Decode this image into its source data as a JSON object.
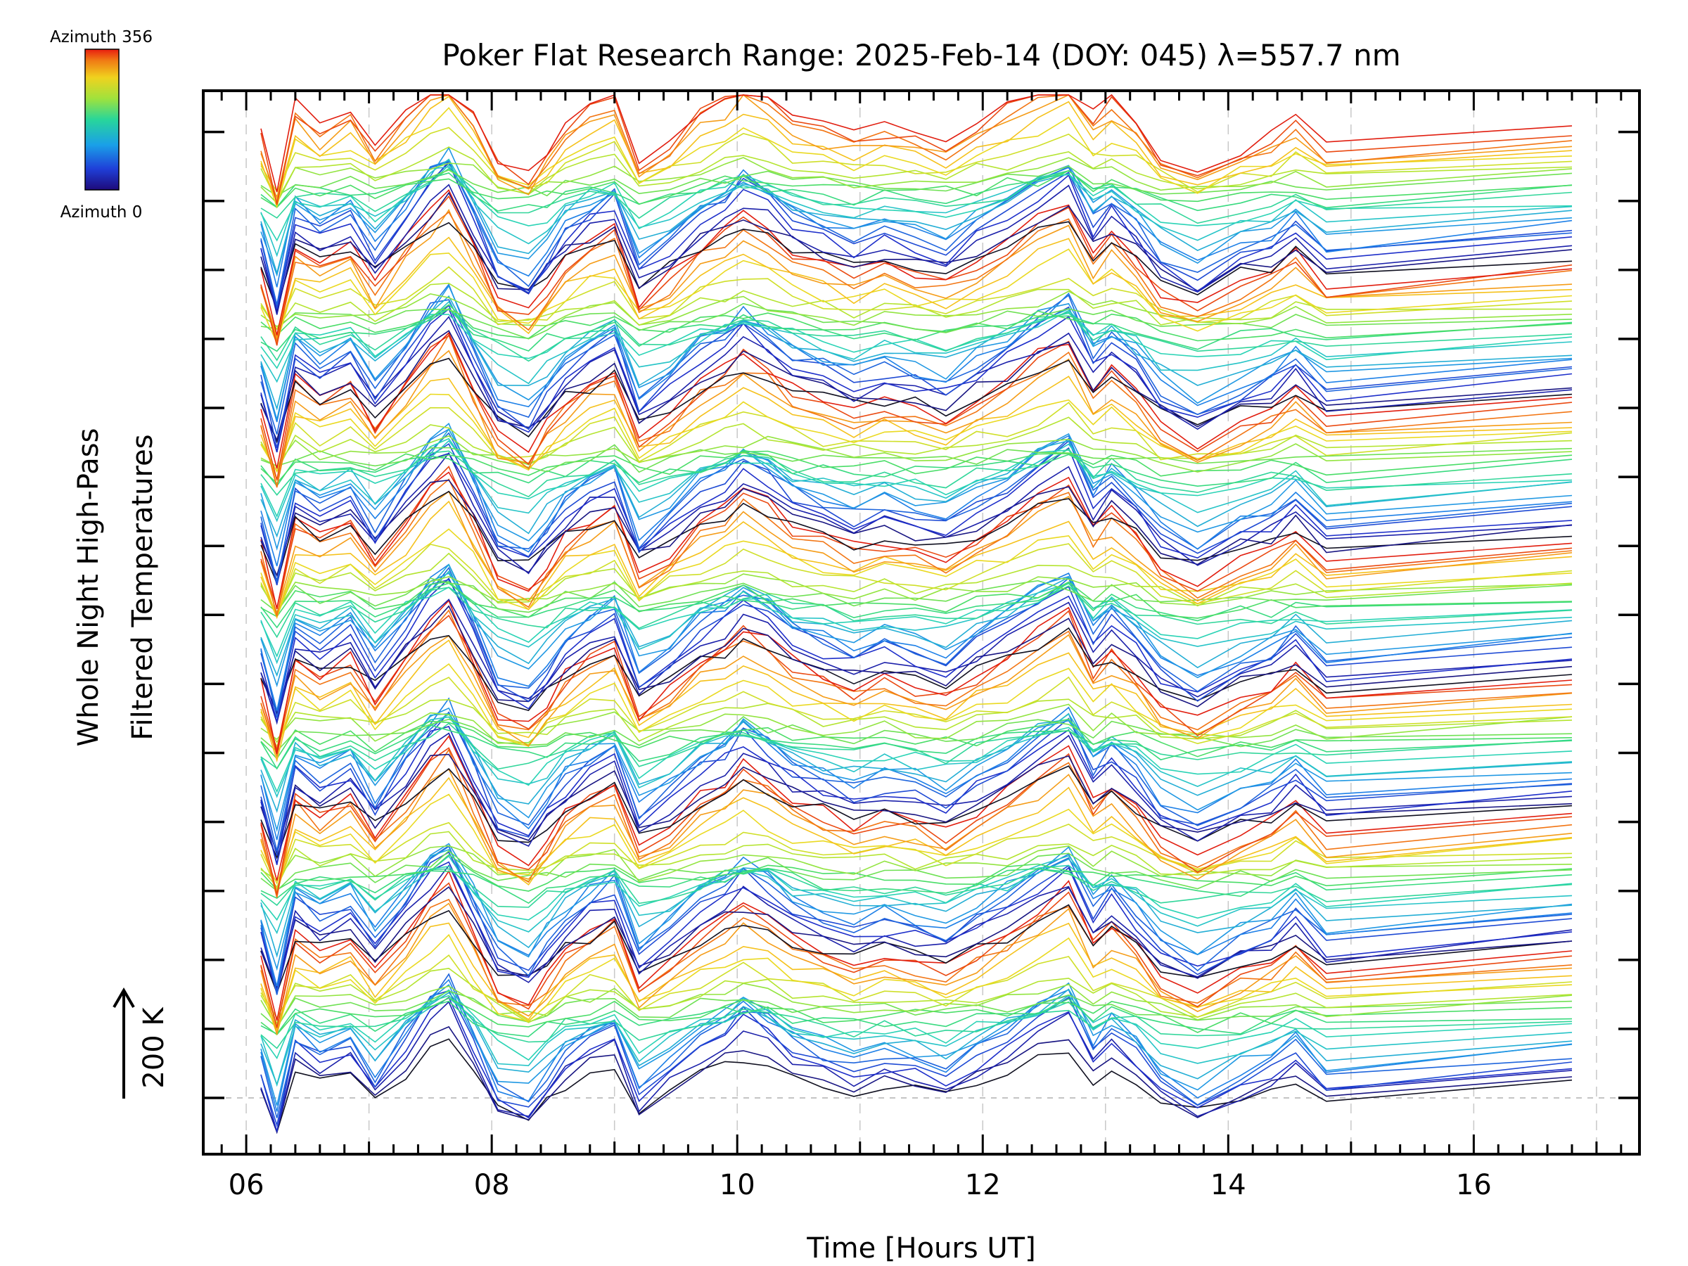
{
  "chart_data": {
    "type": "line",
    "title": "Poker Flat Research Range: 2025-Feb-14 (DOY: 045) λ=557.7 nm",
    "xlabel": "Time [Hours UT]",
    "ylabel_line1": "Whole Night High-Pass",
    "ylabel_line2": "Filtered Temperatures",
    "scale_label": "200 K",
    "xlim": [
      5.65,
      17.35
    ],
    "x_ticks": [
      6,
      8,
      10,
      12,
      14,
      16
    ],
    "x_tick_labels": [
      "06",
      "08",
      "10",
      "12",
      "14",
      "16"
    ],
    "colorbar": {
      "top_label": "Azimuth 356",
      "bottom_label": "Azimuth 0",
      "min": 0,
      "max": 356,
      "colormap": "rainbow"
    },
    "stack": {
      "groups": 7,
      "lines_per_group": 24,
      "note": "Stacked whole-night high-pass filtered temperature traces, one per azimuth (0-356), colored by azimuth"
    },
    "x": [
      6.12,
      6.25,
      6.4,
      6.6,
      6.85,
      7.05,
      7.3,
      7.5,
      7.65,
      7.85,
      8.05,
      8.3,
      8.45,
      8.6,
      8.8,
      9.0,
      9.2,
      9.45,
      9.7,
      9.9,
      10.05,
      10.25,
      10.45,
      10.7,
      10.95,
      11.2,
      11.45,
      11.7,
      11.95,
      12.2,
      12.45,
      12.7,
      12.9,
      13.05,
      13.25,
      13.45,
      13.75,
      14.1,
      14.35,
      14.55,
      14.8,
      16.8
    ],
    "base_profile_K": [
      0,
      -130,
      60,
      20,
      55,
      -30,
      60,
      135,
      170,
      55,
      -60,
      -90,
      -35,
      20,
      60,
      90,
      -60,
      -10,
      55,
      85,
      120,
      90,
      45,
      20,
      -5,
      15,
      0,
      -20,
      25,
      60,
      110,
      150,
      40,
      80,
      30,
      -40,
      -80,
      -30,
      -5,
      40,
      -30,
      40
    ]
  }
}
